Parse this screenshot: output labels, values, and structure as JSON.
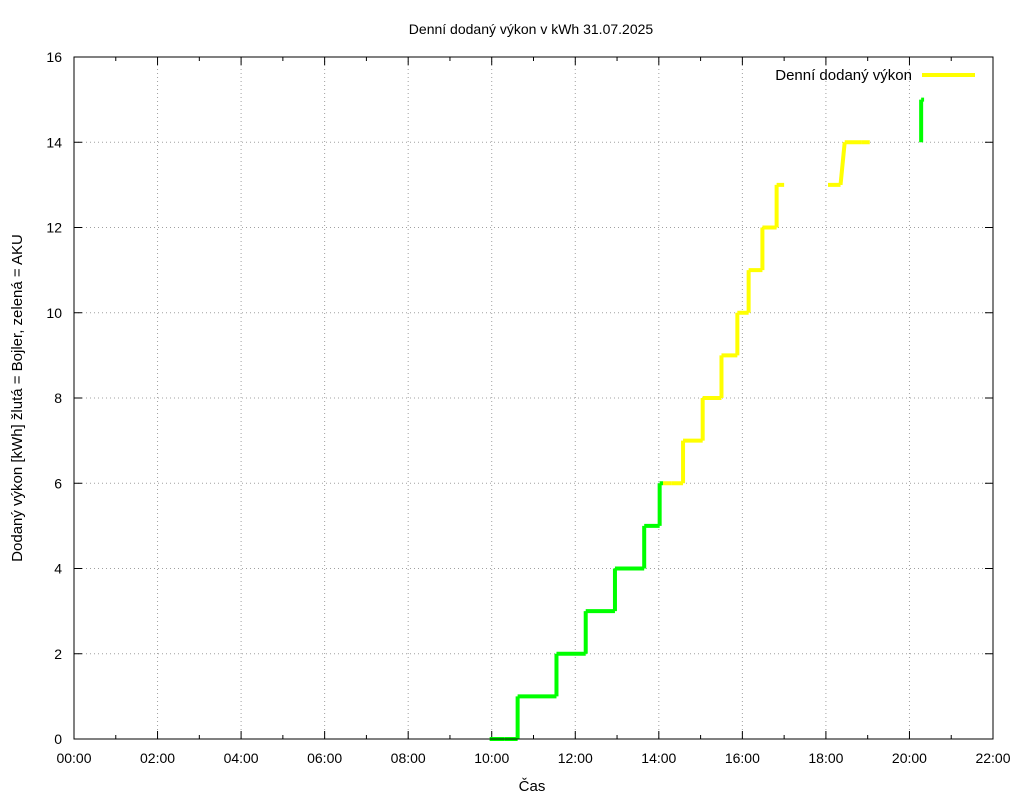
{
  "chart_data": {
    "type": "line",
    "title": "Denní dodaný výkon v kWh 31.07.2025",
    "xlabel": "Čas",
    "ylabel": "Dodaný výkon [kWh]  žlutá = Bojler, zelená = AKU",
    "xlim": [
      0,
      22
    ],
    "ylim": [
      0,
      16
    ],
    "x_ticks": [
      "00:00",
      "02:00",
      "04:00",
      "06:00",
      "08:00",
      "10:00",
      "12:00",
      "14:00",
      "16:00",
      "18:00",
      "20:00",
      "22:00"
    ],
    "y_ticks": [
      "0",
      "2",
      "4",
      "6",
      "8",
      "10",
      "12",
      "14",
      "16"
    ],
    "grid": true,
    "legend_position": "top-right",
    "colors": {
      "bojler": "#ffff00",
      "aku": "#00ff00"
    },
    "series": [
      {
        "name": "Denní dodaný výkon",
        "color": "#ffff00",
        "points": [
          {
            "x": 9.95,
            "y": 0,
            "c": "aku"
          },
          {
            "x": 10.3,
            "y": 0,
            "c": "aku"
          },
          {
            "x": 10.62,
            "y": 0,
            "c": "aku"
          },
          {
            "x": 10.62,
            "y": 1,
            "c": "aku"
          },
          {
            "x": 11.55,
            "y": 1,
            "c": "aku"
          },
          {
            "x": 11.55,
            "y": 2,
            "c": "aku"
          },
          {
            "x": 12.25,
            "y": 2,
            "c": "aku"
          },
          {
            "x": 12.25,
            "y": 3,
            "c": "aku"
          },
          {
            "x": 12.95,
            "y": 3,
            "c": "aku"
          },
          {
            "x": 12.95,
            "y": 4,
            "c": "aku"
          },
          {
            "x": 13.65,
            "y": 4,
            "c": "aku"
          },
          {
            "x": 13.65,
            "y": 5,
            "c": "aku"
          },
          {
            "x": 14.02,
            "y": 5,
            "c": "aku"
          },
          {
            "x": 14.02,
            "y": 6,
            "c": "aku"
          },
          {
            "x": 14.1,
            "y": 6,
            "c": "aku"
          },
          {
            "x": 14.3,
            "y": 6,
            "c": "bojler"
          },
          {
            "x": 14.58,
            "y": 6,
            "c": "bojler"
          },
          {
            "x": 14.58,
            "y": 7,
            "c": "bojler"
          },
          {
            "x": 15.05,
            "y": 7,
            "c": "bojler"
          },
          {
            "x": 15.05,
            "y": 8,
            "c": "bojler"
          },
          {
            "x": 15.5,
            "y": 8,
            "c": "bojler"
          },
          {
            "x": 15.5,
            "y": 9,
            "c": "bojler"
          },
          {
            "x": 15.88,
            "y": 9,
            "c": "bojler"
          },
          {
            "x": 15.88,
            "y": 10,
            "c": "bojler"
          },
          {
            "x": 16.15,
            "y": 10,
            "c": "bojler"
          },
          {
            "x": 16.15,
            "y": 11,
            "c": "bojler"
          },
          {
            "x": 16.48,
            "y": 11,
            "c": "bojler"
          },
          {
            "x": 16.48,
            "y": 12,
            "c": "bojler"
          },
          {
            "x": 16.82,
            "y": 12,
            "c": "bojler"
          },
          {
            "x": 16.82,
            "y": 13,
            "c": "bojler"
          },
          {
            "x": 17.0,
            "y": 13,
            "c": "bojler"
          },
          {
            "x": 18.05,
            "y": 13,
            "c": "bojler"
          },
          {
            "x": 18.35,
            "y": 13,
            "c": "bojler"
          },
          {
            "x": 18.45,
            "y": 14,
            "c": "bojler"
          },
          {
            "x": 18.85,
            "y": 14,
            "c": "bojler"
          },
          {
            "x": 19.05,
            "y": 14,
            "c": "bojler"
          },
          {
            "x": 20.28,
            "y": 14,
            "c": "aku"
          },
          {
            "x": 20.28,
            "y": 15,
            "c": "aku"
          },
          {
            "x": 20.35,
            "y": 15,
            "c": "aku"
          }
        ]
      }
    ]
  }
}
